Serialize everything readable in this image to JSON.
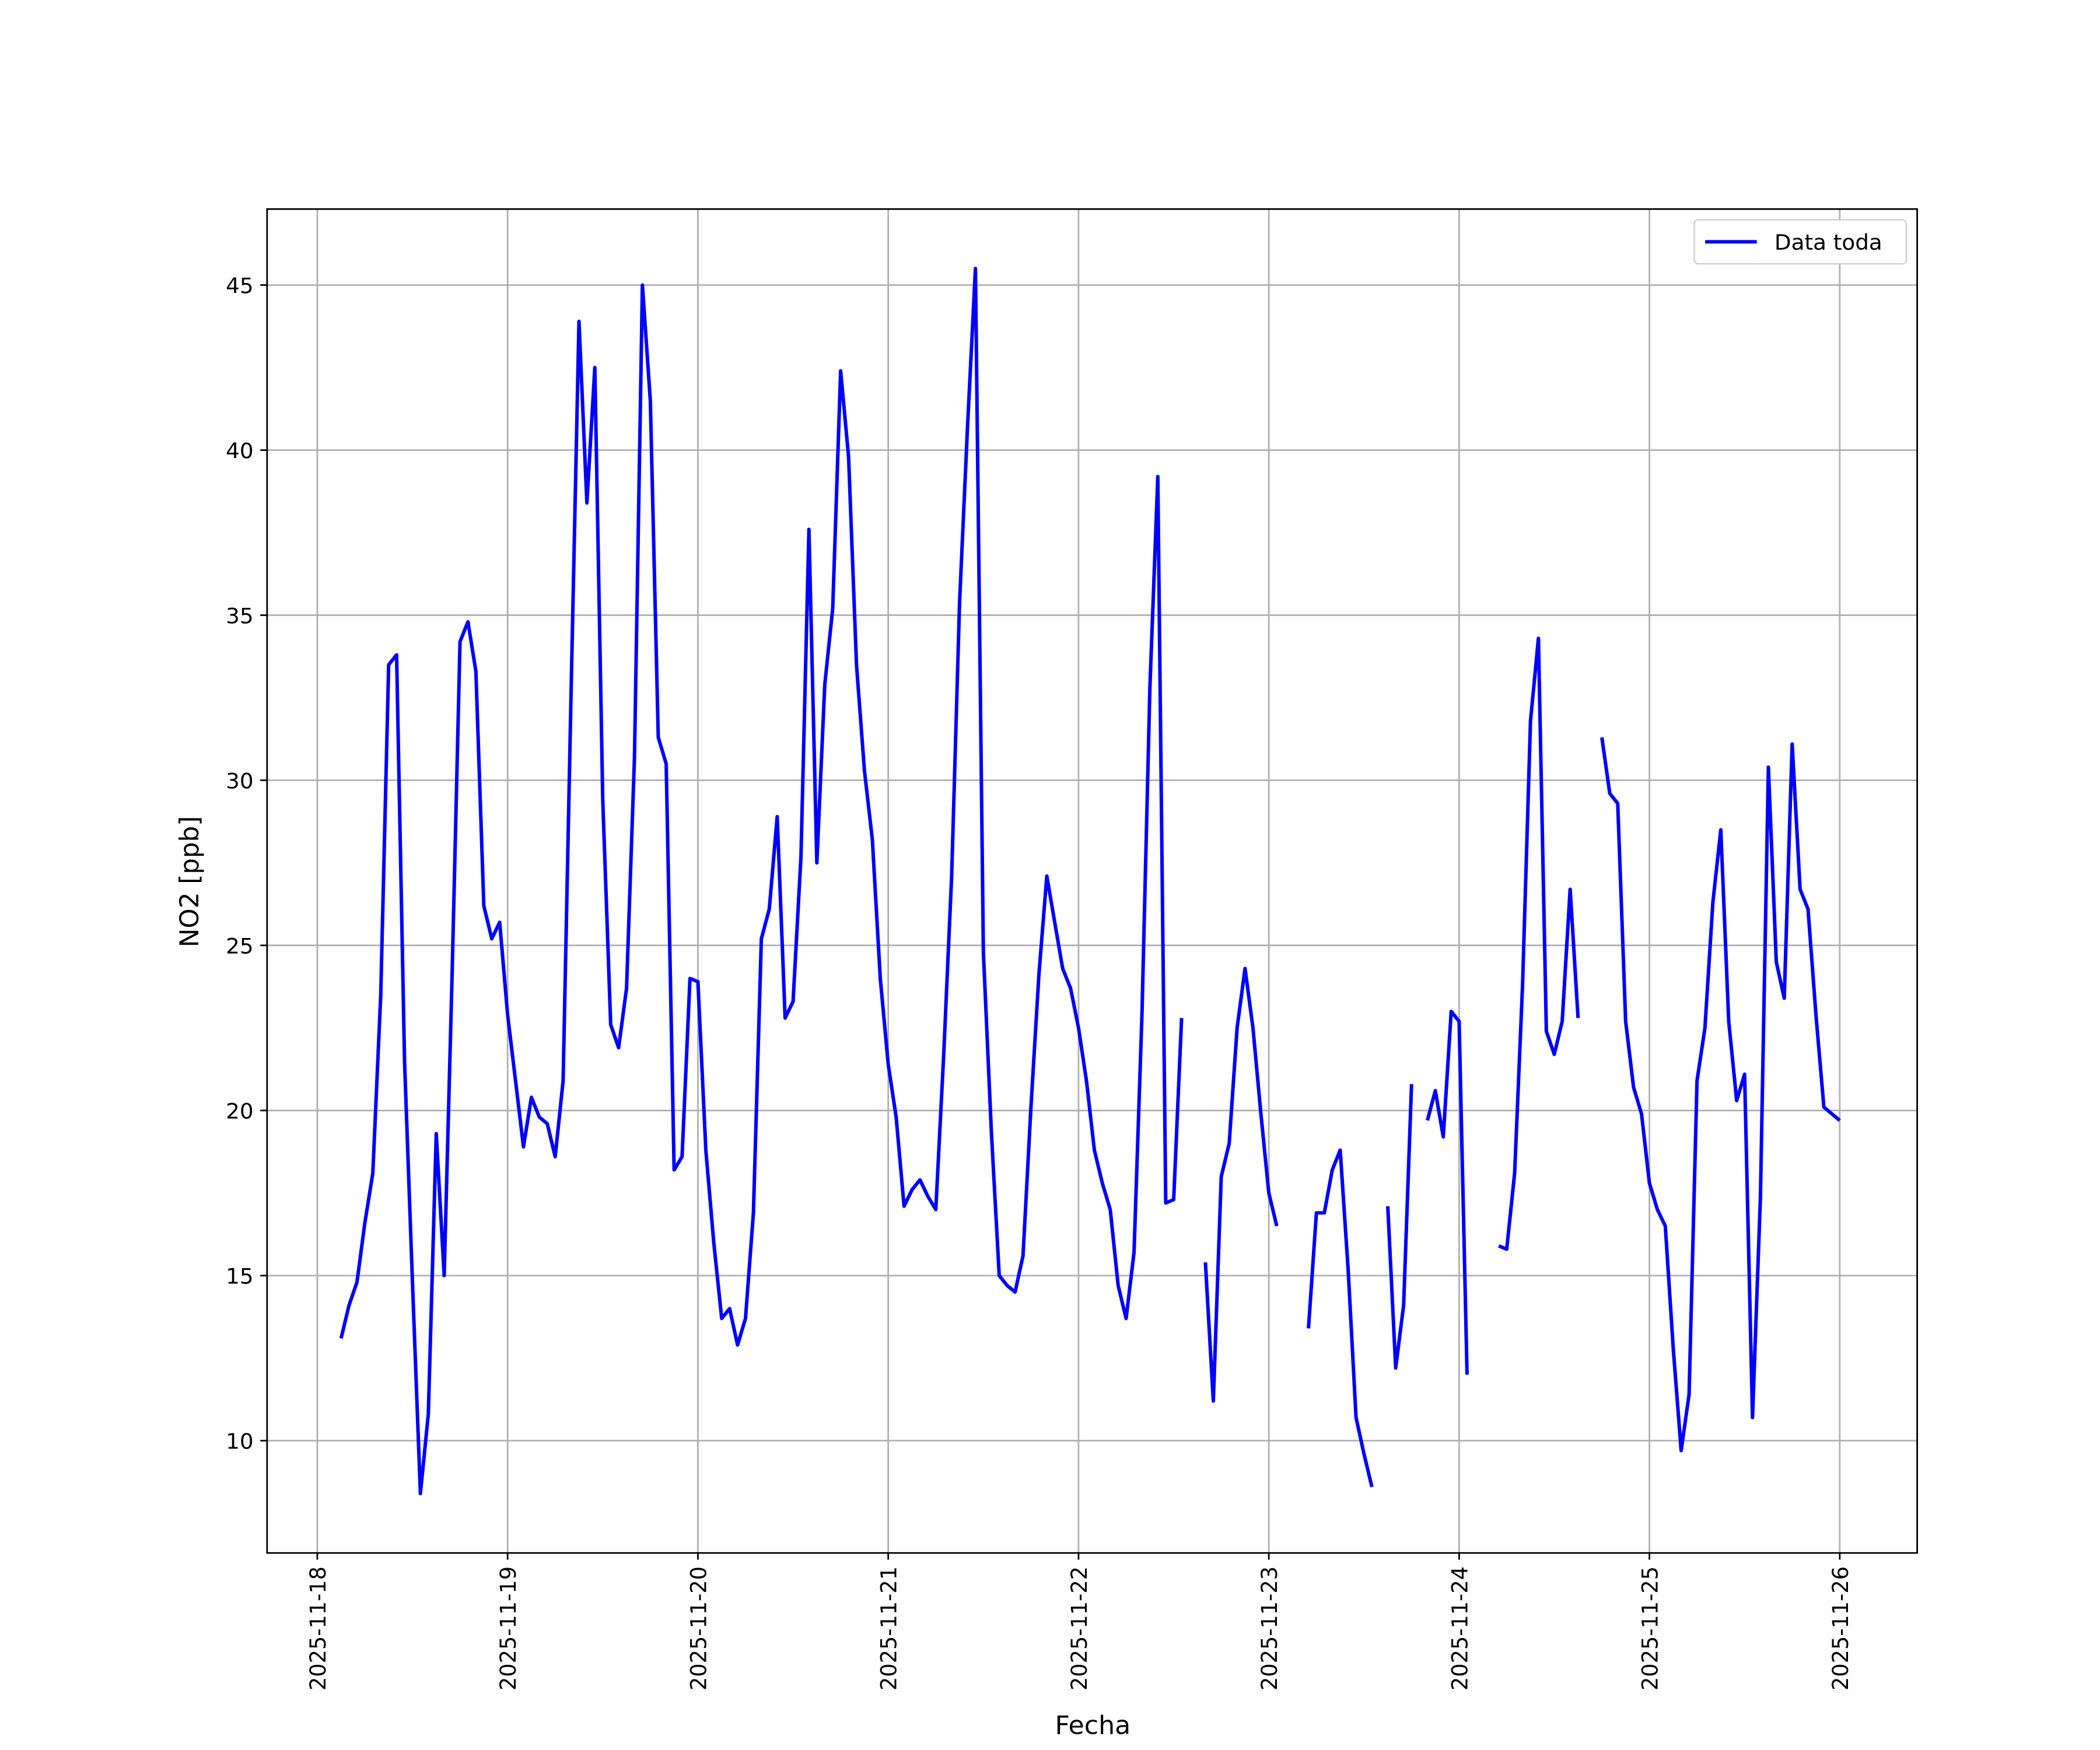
{
  "chart_data": {
    "type": "line",
    "xlabel": "Fecha",
    "ylabel": "NO2 [ppb]",
    "x": [
      "2025-11-18 03:00",
      "2025-11-18 04:00",
      "2025-11-18 05:00",
      "2025-11-18 06:00",
      "2025-11-18 07:00",
      "2025-11-18 08:00",
      "2025-11-18 09:00",
      "2025-11-18 10:00",
      "2025-11-18 11:00",
      "2025-11-18 12:00",
      "2025-11-18 13:00",
      "2025-11-18 14:00",
      "2025-11-18 15:00",
      "2025-11-18 16:00",
      "2025-11-18 17:00",
      "2025-11-18 18:00",
      "2025-11-18 19:00",
      "2025-11-18 20:00",
      "2025-11-18 21:00",
      "2025-11-18 22:00",
      "2025-11-18 23:00",
      "2025-11-19 00:00",
      "2025-11-19 01:00",
      "2025-11-19 02:00",
      "2025-11-19 03:00",
      "2025-11-19 04:00",
      "2025-11-19 05:00",
      "2025-11-19 06:00",
      "2025-11-19 07:00",
      "2025-11-19 08:00",
      "2025-11-19 09:00",
      "2025-11-19 10:00",
      "2025-11-19 11:00",
      "2025-11-19 12:00",
      "2025-11-19 13:00",
      "2025-11-19 14:00",
      "2025-11-19 15:00",
      "2025-11-19 16:00",
      "2025-11-19 17:00",
      "2025-11-19 18:00",
      "2025-11-19 19:00",
      "2025-11-19 20:00",
      "2025-11-19 21:00",
      "2025-11-19 22:00",
      "2025-11-19 23:00",
      "2025-11-20 00:00",
      "2025-11-20 01:00",
      "2025-11-20 02:00",
      "2025-11-20 03:00",
      "2025-11-20 04:00",
      "2025-11-20 05:00",
      "2025-11-20 06:00",
      "2025-11-20 07:00",
      "2025-11-20 08:00",
      "2025-11-20 09:00",
      "2025-11-20 10:00",
      "2025-11-20 11:00",
      "2025-11-20 12:00",
      "2025-11-20 13:00",
      "2025-11-20 14:00",
      "2025-11-20 15:00",
      "2025-11-20 16:00",
      "2025-11-20 17:00",
      "2025-11-20 18:00",
      "2025-11-20 19:00",
      "2025-11-20 20:00",
      "2025-11-20 21:00",
      "2025-11-20 22:00",
      "2025-11-20 23:00",
      "2025-11-21 00:00",
      "2025-11-21 01:00",
      "2025-11-21 02:00",
      "2025-11-21 03:00",
      "2025-11-21 04:00",
      "2025-11-21 05:00",
      "2025-11-21 06:00",
      "2025-11-21 07:00",
      "2025-11-21 08:00",
      "2025-11-21 09:00",
      "2025-11-21 10:00",
      "2025-11-21 11:00",
      "2025-11-21 12:00",
      "2025-11-21 13:00",
      "2025-11-21 14:00",
      "2025-11-21 15:00",
      "2025-11-21 16:00",
      "2025-11-21 17:00",
      "2025-11-21 18:00",
      "2025-11-21 19:00",
      "2025-11-21 20:00",
      "2025-11-21 21:00",
      "2025-11-21 22:00",
      "2025-11-21 23:00",
      "2025-11-22 00:00",
      "2025-11-22 01:00",
      "2025-11-22 02:00",
      "2025-11-22 03:00",
      "2025-11-22 04:00",
      "2025-11-22 05:00",
      "2025-11-22 06:00",
      "2025-11-22 07:00",
      "2025-11-22 08:00",
      "2025-11-22 09:00",
      "2025-11-22 10:00",
      "2025-11-22 11:00",
      "2025-11-22 12:00",
      "2025-11-22 13:00",
      "2025-11-22 14:00",
      "2025-11-22 15:00",
      "2025-11-22 16:00",
      "2025-11-22 17:00",
      "2025-11-22 18:00",
      "2025-11-22 19:00",
      "2025-11-22 20:00",
      "2025-11-22 21:00",
      "2025-11-22 22:00",
      "2025-11-22 23:00",
      "2025-11-23 00:00",
      "2025-11-23 01:00",
      "2025-11-23 02:00",
      "2025-11-23 03:00",
      "2025-11-23 04:00",
      "2025-11-23 05:00",
      "2025-11-23 06:00",
      "2025-11-23 07:00",
      "2025-11-23 08:00",
      "2025-11-23 09:00",
      "2025-11-23 10:00",
      "2025-11-23 11:00",
      "2025-11-23 12:00",
      "2025-11-23 13:00",
      "2025-11-23 14:00",
      "2025-11-23 15:00",
      "2025-11-23 16:00",
      "2025-11-23 17:00",
      "2025-11-23 18:00",
      "2025-11-23 19:00",
      "2025-11-23 20:00",
      "2025-11-23 21:00",
      "2025-11-23 22:00",
      "2025-11-23 23:00",
      "2025-11-24 00:00",
      "2025-11-24 01:00",
      "2025-11-24 02:00",
      "2025-11-24 03:00",
      "2025-11-24 04:00",
      "2025-11-24 05:00",
      "2025-11-24 06:00",
      "2025-11-24 07:00",
      "2025-11-24 08:00",
      "2025-11-24 09:00",
      "2025-11-24 10:00",
      "2025-11-24 11:00",
      "2025-11-24 12:00",
      "2025-11-24 13:00",
      "2025-11-24 14:00",
      "2025-11-24 15:00",
      "2025-11-24 16:00",
      "2025-11-24 17:00",
      "2025-11-24 18:00",
      "2025-11-24 19:00",
      "2025-11-24 20:00",
      "2025-11-24 21:00",
      "2025-11-24 22:00",
      "2025-11-24 23:00",
      "2025-11-25 00:00",
      "2025-11-25 01:00",
      "2025-11-25 02:00",
      "2025-11-25 03:00",
      "2025-11-25 04:00",
      "2025-11-25 05:00",
      "2025-11-25 06:00",
      "2025-11-25 07:00",
      "2025-11-25 08:00",
      "2025-11-25 09:00",
      "2025-11-25 10:00",
      "2025-11-25 11:00",
      "2025-11-25 12:00",
      "2025-11-25 13:00",
      "2025-11-25 14:00",
      "2025-11-25 15:00",
      "2025-11-25 16:00",
      "2025-11-25 17:00",
      "2025-11-25 18:00",
      "2025-11-25 19:00",
      "2025-11-25 20:00",
      "2025-11-25 21:00",
      "2025-11-25 22:00",
      "2025-11-25 23:00",
      "2025-11-26 00:00"
    ],
    "series": [
      {
        "name": "Data toda",
        "color": "#0000ff",
        "values": [
          13.1,
          14.1,
          14.8,
          16.6,
          18.1,
          23.5,
          33.5,
          33.8,
          21.5,
          14.8,
          8.4,
          10.8,
          19.3,
          15.0,
          24.1,
          34.2,
          34.8,
          33.3,
          26.2,
          25.2,
          25.7,
          22.9,
          20.9,
          18.9,
          20.4,
          19.8,
          19.6,
          18.6,
          20.9,
          32.6,
          43.9,
          38.4,
          42.5,
          29.4,
          22.6,
          21.9,
          23.7,
          30.7,
          45.0,
          41.5,
          31.3,
          30.5,
          18.2,
          18.6,
          24.0,
          23.9,
          18.8,
          16.0,
          13.7,
          14.0,
          12.9,
          13.7,
          16.9,
          25.2,
          26.1,
          28.9,
          22.8,
          23.3,
          27.7,
          37.6,
          27.5,
          32.9,
          35.2,
          42.4,
          39.8,
          33.5,
          30.3,
          28.2,
          24.0,
          21.4,
          19.8,
          17.1,
          17.6,
          17.9,
          17.4,
          17.0,
          21.7,
          27.1,
          35.4,
          40.7,
          45.5,
          24.8,
          19.4,
          15.0,
          14.7,
          14.5,
          15.6,
          20.1,
          24.1,
          27.1,
          25.7,
          24.3,
          23.7,
          22.5,
          20.9,
          18.8,
          17.8,
          17.0,
          14.7,
          13.7,
          15.7,
          22.9,
          32.8,
          39.2,
          17.2,
          17.3,
          22.8,
          null,
          null,
          15.4,
          11.2,
          18.0,
          19.0,
          22.5,
          24.3,
          22.5,
          19.9,
          17.5,
          16.5,
          null,
          null,
          null,
          13.4,
          16.9,
          16.9,
          18.2,
          18.8,
          15.2,
          10.7,
          9.6,
          8.6,
          null,
          17.1,
          12.2,
          14.1,
          20.8,
          null,
          19.7,
          20.6,
          19.2,
          23.0,
          22.7,
          12.0,
          null,
          null,
          null,
          15.9,
          15.8,
          18.1,
          23.8,
          31.8,
          34.3,
          22.4,
          21.7,
          22.7,
          26.7,
          22.8,
          null,
          null,
          31.3,
          29.6,
          29.3,
          22.7,
          20.7,
          19.9,
          17.8,
          17.0,
          16.5,
          12.8,
          9.7,
          11.4,
          20.9,
          22.5,
          26.3,
          28.5,
          22.7,
          20.3,
          21.1,
          10.7,
          17.4,
          30.4,
          24.5,
          23.4,
          31.1,
          26.7,
          26.1,
          22.9,
          20.1,
          19.9,
          19.7
        ]
      }
    ],
    "xlim": [
      "2025-11-17 17:40",
      "2025-11-26 09:46"
    ],
    "xticks": [
      "2025-11-18",
      "2025-11-19",
      "2025-11-20",
      "2025-11-21",
      "2025-11-22",
      "2025-11-23",
      "2025-11-24",
      "2025-11-25",
      "2025-11-26"
    ],
    "ylim": [
      6.6,
      47.3
    ],
    "yticks": [
      10,
      15,
      20,
      25,
      30,
      35,
      40,
      45
    ],
    "grid": true,
    "legend": "upper right"
  }
}
